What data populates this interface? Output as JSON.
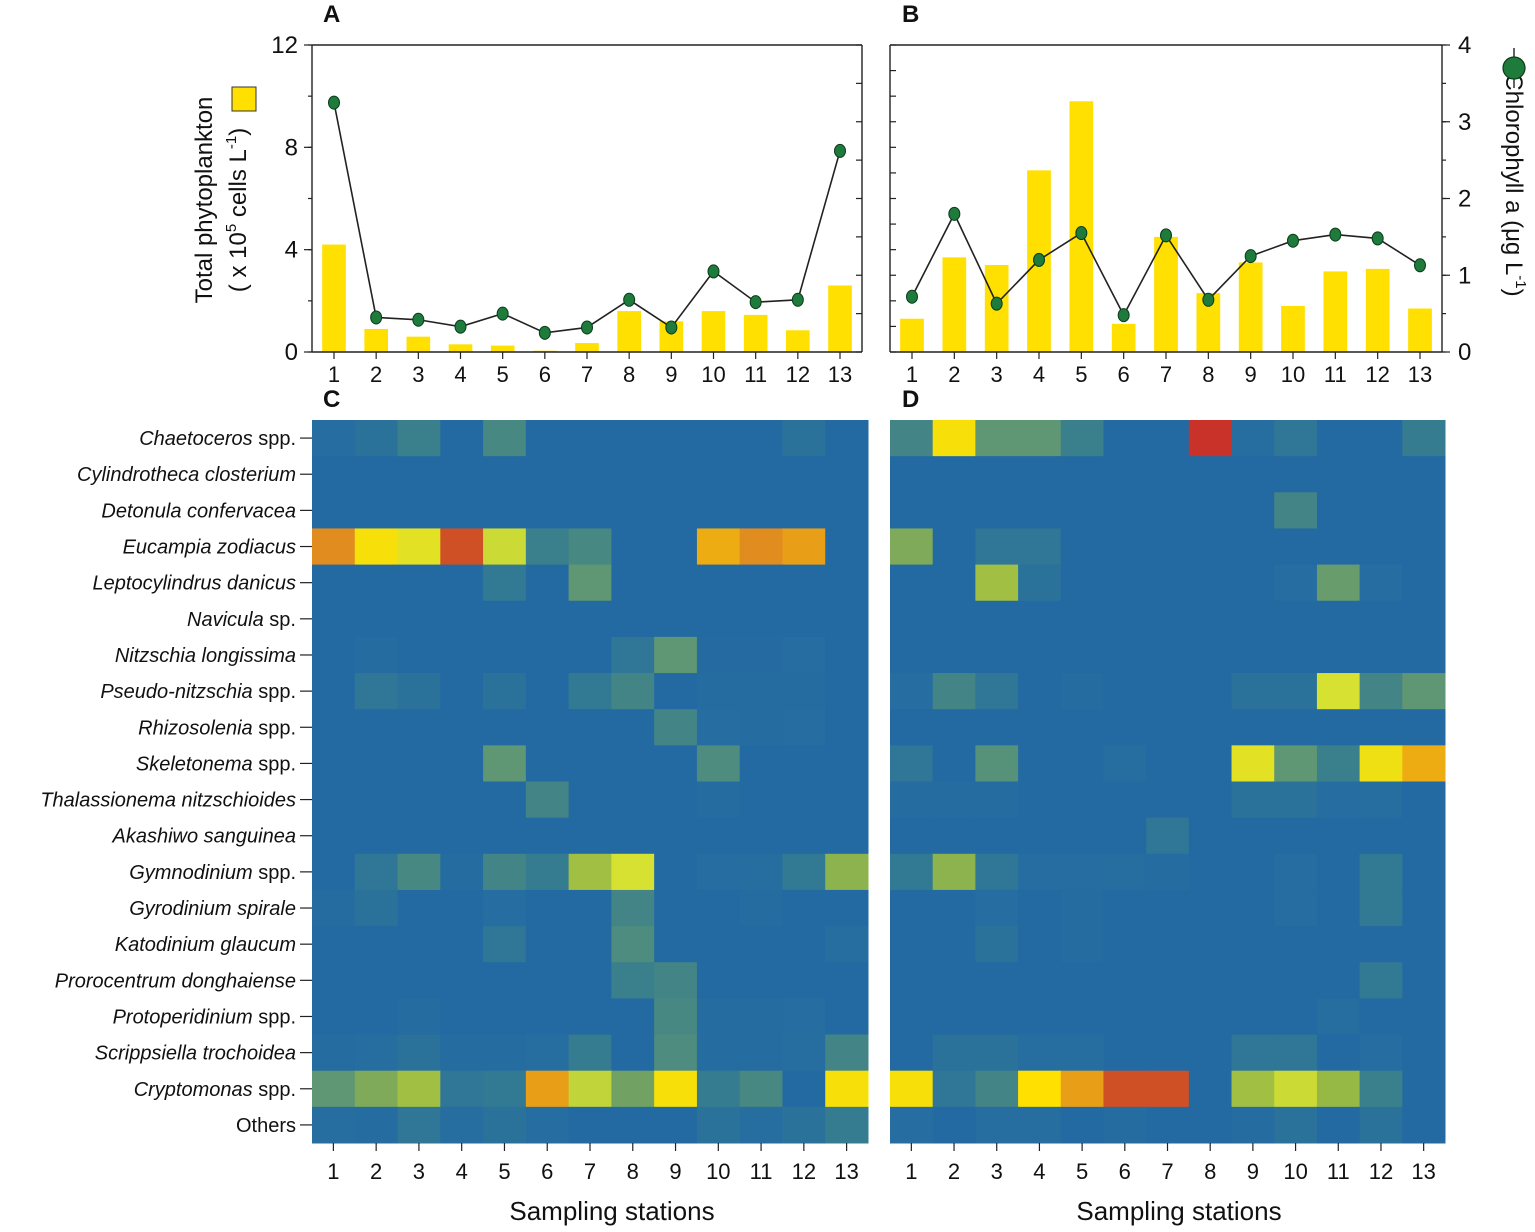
{
  "chart_data": [
    {
      "panel": "A",
      "type": "bar+line",
      "title": "A",
      "xlabel": "",
      "ylabel_line1": "Total phytoplankton",
      "ylabel_line2": "( x 10",
      "ylabel_sup": "5",
      "ylabel_line3": " cells L",
      "ylabel_sup2": "-1",
      "ylabel_close": ")",
      "categories": [
        "1",
        "2",
        "3",
        "4",
        "5",
        "6",
        "7",
        "8",
        "9",
        "10",
        "11",
        "12",
        "13"
      ],
      "series": [
        {
          "name": "Total phytoplankton",
          "axis": "left",
          "values": [
            4.2,
            0.9,
            0.6,
            0.3,
            0.25,
            0.05,
            0.35,
            1.6,
            1.2,
            1.6,
            1.45,
            0.85,
            2.6
          ]
        },
        {
          "name": "Chlorophyll a",
          "axis": "right",
          "values": [
            3.25,
            0.45,
            0.42,
            0.33,
            0.5,
            0.25,
            0.32,
            0.68,
            0.32,
            1.05,
            0.65,
            0.68,
            2.62
          ]
        }
      ],
      "left_ylim": [
        0,
        12
      ],
      "left_ticks": [
        "0",
        "4",
        "8",
        "12"
      ],
      "right_ylim": [
        0,
        4
      ],
      "bar_color": "#ffe000",
      "line_color": "#1e7b3b"
    },
    {
      "panel": "B",
      "type": "bar+line",
      "title": "B",
      "xlabel": "",
      "ylabel": "Chlorophyll a (μg L",
      "ylabel_sup": "-1",
      "ylabel_close": ")",
      "categories": [
        "1",
        "2",
        "3",
        "4",
        "5",
        "6",
        "7",
        "8",
        "9",
        "10",
        "11",
        "12",
        "13"
      ],
      "series": [
        {
          "name": "Total phytoplankton",
          "axis": "left",
          "values": [
            1.3,
            3.7,
            3.4,
            7.1,
            9.8,
            1.1,
            4.5,
            2.3,
            3.5,
            1.8,
            3.15,
            3.25,
            1.7
          ]
        },
        {
          "name": "Chlorophyll a",
          "axis": "right",
          "values": [
            0.72,
            1.8,
            0.63,
            1.2,
            1.55,
            0.48,
            1.52,
            0.68,
            1.25,
            1.45,
            1.53,
            1.48,
            1.13
          ]
        }
      ],
      "left_ylim": [
        0,
        12
      ],
      "right_ylim": [
        0,
        4
      ],
      "right_ticks": [
        "0",
        "1",
        "2",
        "3",
        "4"
      ]
    },
    {
      "panel": "C",
      "type": "heatmap",
      "title": "C",
      "xlabel": "Sampling stations",
      "x": [
        "1",
        "2",
        "3",
        "4",
        "5",
        "6",
        "7",
        "8",
        "9",
        "10",
        "11",
        "12",
        "13"
      ],
      "y": [
        "Chaetoceros spp.",
        "Cylindrotheca closterium",
        "Detonula confervacea",
        "Eucampia zodiacus",
        "Leptocylindrus danicus",
        "Navicula sp.",
        "Nitzschia longissima",
        "Pseudo-nitzschia spp.",
        "Rhizosolenia spp.",
        "Skeletonema spp.",
        "Thalassionema nitzschioides",
        "Akashiwo sanguinea",
        "Gymnodinium spp.",
        "Gyrodinium spirale",
        "Katodinium glaucum",
        "Prorocentrum donghaiense",
        "Protoperidinium spp.",
        "Scrippsiella trochoidea",
        "Cryptomonas spp.",
        "Others"
      ],
      "scale": "relative abundance, 0 (blue) to 1 (red)",
      "values": [
        [
          0.1,
          0.15,
          0.25,
          0.05,
          0.3,
          0.05,
          0.05,
          0.05,
          0.05,
          0.05,
          0.05,
          0.15,
          0.05
        ],
        [
          0.05,
          0.05,
          0.05,
          0.05,
          0.05,
          0.05,
          0.05,
          0.05,
          0.05,
          0.05,
          0.05,
          0.05,
          0.05
        ],
        [
          0.05,
          0.05,
          0.05,
          0.05,
          0.05,
          0.05,
          0.05,
          0.05,
          0.05,
          0.05,
          0.05,
          0.05,
          0.05
        ],
        [
          0.85,
          0.7,
          0.65,
          0.95,
          0.6,
          0.25,
          0.3,
          0.05,
          0.05,
          0.8,
          0.85,
          0.82,
          0.05
        ],
        [
          0.05,
          0.05,
          0.05,
          0.05,
          0.2,
          0.05,
          0.38,
          0.05,
          0.05,
          0.05,
          0.05,
          0.05,
          0.05
        ],
        [
          0.05,
          0.05,
          0.05,
          0.05,
          0.05,
          0.05,
          0.05,
          0.05,
          0.05,
          0.05,
          0.05,
          0.05,
          0.05
        ],
        [
          0.05,
          0.08,
          0.05,
          0.05,
          0.05,
          0.05,
          0.05,
          0.18,
          0.38,
          0.07,
          0.07,
          0.1,
          0.05
        ],
        [
          0.05,
          0.18,
          0.15,
          0.05,
          0.15,
          0.05,
          0.2,
          0.28,
          0.05,
          0.08,
          0.08,
          0.08,
          0.05
        ],
        [
          0.05,
          0.05,
          0.05,
          0.05,
          0.05,
          0.05,
          0.05,
          0.05,
          0.28,
          0.1,
          0.08,
          0.1,
          0.05
        ],
        [
          0.05,
          0.05,
          0.05,
          0.05,
          0.38,
          0.05,
          0.05,
          0.05,
          0.05,
          0.32,
          0.05,
          0.05,
          0.05
        ],
        [
          0.05,
          0.05,
          0.05,
          0.05,
          0.05,
          0.28,
          0.05,
          0.05,
          0.05,
          0.08,
          0.05,
          0.05,
          0.05
        ],
        [
          0.05,
          0.05,
          0.05,
          0.05,
          0.05,
          0.05,
          0.05,
          0.05,
          0.05,
          0.05,
          0.05,
          0.05,
          0.05
        ],
        [
          0.05,
          0.18,
          0.3,
          0.08,
          0.28,
          0.22,
          0.52,
          0.62,
          0.05,
          0.1,
          0.12,
          0.2,
          0.48
        ],
        [
          0.08,
          0.15,
          0.05,
          0.05,
          0.1,
          0.05,
          0.05,
          0.28,
          0.05,
          0.05,
          0.08,
          0.05,
          0.05
        ],
        [
          0.05,
          0.05,
          0.05,
          0.05,
          0.18,
          0.05,
          0.05,
          0.32,
          0.05,
          0.05,
          0.05,
          0.05,
          0.12
        ],
        [
          0.05,
          0.05,
          0.05,
          0.05,
          0.05,
          0.05,
          0.05,
          0.25,
          0.28,
          0.05,
          0.05,
          0.05,
          0.05
        ],
        [
          0.05,
          0.05,
          0.08,
          0.05,
          0.05,
          0.05,
          0.05,
          0.05,
          0.3,
          0.08,
          0.08,
          0.1,
          0.05
        ],
        [
          0.08,
          0.12,
          0.15,
          0.08,
          0.08,
          0.12,
          0.22,
          0.05,
          0.32,
          0.08,
          0.08,
          0.12,
          0.28
        ],
        [
          0.38,
          0.45,
          0.52,
          0.18,
          0.2,
          0.82,
          0.58,
          0.42,
          0.7,
          0.22,
          0.3,
          0.05,
          0.7
        ],
        [
          0.12,
          0.08,
          0.18,
          0.12,
          0.15,
          0.1,
          0.05,
          0.05,
          0.05,
          0.15,
          0.12,
          0.15,
          0.22
        ]
      ]
    },
    {
      "panel": "D",
      "type": "heatmap",
      "title": "D",
      "xlabel": "Sampling stations",
      "x": [
        "1",
        "2",
        "3",
        "4",
        "5",
        "6",
        "7",
        "8",
        "9",
        "10",
        "11",
        "12",
        "13"
      ],
      "y": [
        "Chaetoceros spp.",
        "Cylindrotheca closterium",
        "Detonula confervacea",
        "Eucampia zodiacus",
        "Leptocylindrus danicus",
        "Navicula sp.",
        "Nitzschia longissima",
        "Pseudo-nitzschia spp.",
        "Rhizosolenia spp.",
        "Skeletonema spp.",
        "Thalassionema nitzschioides",
        "Akashiwo sanguinea",
        "Gymnodinium spp.",
        "Gyrodinium spirale",
        "Katodinium glaucum",
        "Prorocentrum donghaiense",
        "Protoperidinium spp.",
        "Scrippsiella trochoidea",
        "Cryptomonas spp.",
        "Others"
      ],
      "scale": "relative abundance, 0 (blue) to 1 (red)",
      "values": [
        [
          0.28,
          0.7,
          0.38,
          0.38,
          0.25,
          0.05,
          0.05,
          1.0,
          0.12,
          0.18,
          0.05,
          0.05,
          0.22
        ],
        [
          0.05,
          0.05,
          0.05,
          0.05,
          0.05,
          0.05,
          0.05,
          0.05,
          0.05,
          0.05,
          0.05,
          0.05,
          0.05
        ],
        [
          0.05,
          0.05,
          0.05,
          0.05,
          0.05,
          0.05,
          0.05,
          0.05,
          0.05,
          0.28,
          0.05,
          0.05,
          0.05
        ],
        [
          0.45,
          0.05,
          0.18,
          0.18,
          0.05,
          0.05,
          0.05,
          0.05,
          0.05,
          0.05,
          0.05,
          0.05,
          0.05
        ],
        [
          0.05,
          0.05,
          0.52,
          0.15,
          0.05,
          0.05,
          0.05,
          0.05,
          0.05,
          0.1,
          0.4,
          0.1,
          0.05
        ],
        [
          0.05,
          0.05,
          0.05,
          0.05,
          0.05,
          0.05,
          0.05,
          0.05,
          0.05,
          0.05,
          0.05,
          0.05,
          0.05
        ],
        [
          0.05,
          0.05,
          0.05,
          0.05,
          0.05,
          0.05,
          0.05,
          0.05,
          0.05,
          0.05,
          0.05,
          0.05,
          0.05
        ],
        [
          0.1,
          0.28,
          0.18,
          0.05,
          0.08,
          0.05,
          0.05,
          0.05,
          0.15,
          0.15,
          0.62,
          0.28,
          0.38
        ],
        [
          0.05,
          0.05,
          0.05,
          0.05,
          0.05,
          0.05,
          0.05,
          0.05,
          0.05,
          0.05,
          0.05,
          0.05,
          0.05
        ],
        [
          0.18,
          0.05,
          0.35,
          0.05,
          0.05,
          0.12,
          0.05,
          0.05,
          0.65,
          0.38,
          0.25,
          0.68,
          0.8
        ],
        [
          0.08,
          0.08,
          0.08,
          0.05,
          0.05,
          0.05,
          0.05,
          0.05,
          0.15,
          0.15,
          0.1,
          0.12,
          0.05
        ],
        [
          0.05,
          0.05,
          0.05,
          0.05,
          0.05,
          0.05,
          0.18,
          0.05,
          0.05,
          0.05,
          0.05,
          0.05,
          0.05
        ],
        [
          0.2,
          0.48,
          0.18,
          0.1,
          0.1,
          0.12,
          0.08,
          0.05,
          0.05,
          0.1,
          0.05,
          0.2,
          0.05
        ],
        [
          0.05,
          0.05,
          0.1,
          0.05,
          0.08,
          0.05,
          0.05,
          0.05,
          0.05,
          0.1,
          0.05,
          0.2,
          0.05
        ],
        [
          0.05,
          0.05,
          0.15,
          0.05,
          0.08,
          0.05,
          0.05,
          0.05,
          0.05,
          0.05,
          0.05,
          0.05,
          0.05
        ],
        [
          0.05,
          0.05,
          0.05,
          0.05,
          0.05,
          0.05,
          0.05,
          0.05,
          0.05,
          0.05,
          0.05,
          0.2,
          0.05
        ],
        [
          0.05,
          0.05,
          0.05,
          0.05,
          0.05,
          0.05,
          0.05,
          0.05,
          0.05,
          0.05,
          0.12,
          0.05,
          0.05
        ],
        [
          0.05,
          0.15,
          0.15,
          0.12,
          0.12,
          0.05,
          0.05,
          0.05,
          0.18,
          0.18,
          0.05,
          0.1,
          0.05
        ],
        [
          0.7,
          0.18,
          0.28,
          0.72,
          0.82,
          0.95,
          0.95,
          0.05,
          0.52,
          0.6,
          0.5,
          0.25,
          0.05
        ],
        [
          0.1,
          0.05,
          0.12,
          0.12,
          0.05,
          0.08,
          0.05,
          0.05,
          0.08,
          0.15,
          0.05,
          0.15,
          0.05
        ]
      ]
    }
  ],
  "legend": {
    "bar_label": "Total phytoplankton",
    "line_label": "Chlorophyll a"
  },
  "colors": {
    "heat_low": "#2367a3",
    "heat_mid": "#ffe000",
    "heat_high": "#c9322b",
    "bar": "#ffe000",
    "marker": "#1e7b3b"
  }
}
